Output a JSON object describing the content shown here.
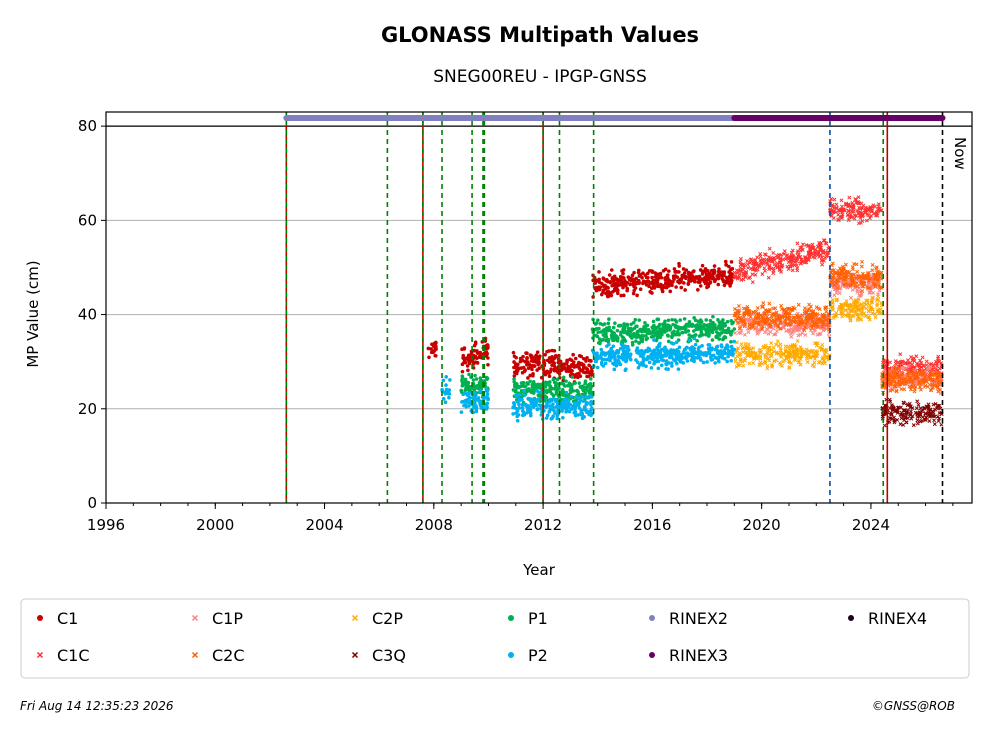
{
  "chart_data": {
    "type": "scatter",
    "title": "GLONASS Multipath Values",
    "subtitle": "SNEG00REU - IPGP-GNSS",
    "xlabel": "Year",
    "ylabel": "MP Value (cm)",
    "xlim": [
      1996,
      2027.7
    ],
    "ylim": [
      0,
      83
    ],
    "x_ticks": [
      "1996",
      "2000",
      "2004",
      "2008",
      "2012",
      "2016",
      "2020",
      "2024"
    ],
    "y_ticks": [
      "0",
      "20",
      "40",
      "60",
      "80"
    ],
    "grid": "horizontal",
    "legend_placement": "bottom",
    "now_label": "Now",
    "now_year": 2026.62,
    "reference_line_y": 80,
    "series": [
      {
        "name": "C1",
        "color": "#c80000",
        "marker": "circle",
        "segments": [
          [
            2007.8,
            2008.1,
            33
          ],
          [
            2009.0,
            2009.6,
            31
          ],
          [
            2009.6,
            2010.0,
            32
          ],
          [
            2010.9,
            2012.0,
            29.5
          ],
          [
            2012.0,
            2012.6,
            29.5
          ],
          [
            2012.6,
            2013.8,
            28.5
          ],
          [
            2013.8,
            2019.0,
            46,
            48.5
          ]
        ]
      },
      {
        "name": "C1C",
        "color": "#ff3030",
        "marker": "x",
        "segments": [
          [
            2019.0,
            2022.5,
            49,
            54
          ],
          [
            2022.5,
            2024.4,
            62
          ],
          [
            2024.4,
            2026.6,
            28.5
          ]
        ]
      },
      {
        "name": "C1P",
        "color": "#ff8080",
        "marker": "x",
        "segments": [
          [
            2019.0,
            2022.5,
            38
          ],
          [
            2022.5,
            2024.4,
            46.5
          ],
          [
            2024.4,
            2026.6,
            26.5
          ]
        ]
      },
      {
        "name": "C2C",
        "color": "#ff6000",
        "marker": "x",
        "segments": [
          [
            2019.0,
            2022.5,
            39.5
          ],
          [
            2022.5,
            2024.4,
            48
          ],
          [
            2024.4,
            2026.6,
            26
          ]
        ]
      },
      {
        "name": "C2P",
        "color": "#ffaa00",
        "marker": "x",
        "segments": [
          [
            2019.0,
            2022.5,
            31.5
          ],
          [
            2022.5,
            2024.4,
            41.5
          ]
        ]
      },
      {
        "name": "C3Q",
        "color": "#800000",
        "marker": "x",
        "segments": [
          [
            2024.4,
            2026.6,
            19
          ]
        ]
      },
      {
        "name": "P1",
        "color": "#00b050",
        "marker": "circle",
        "segments": [
          [
            2009.0,
            2010.0,
            25
          ],
          [
            2010.9,
            2013.8,
            24
          ],
          [
            2013.8,
            2019.0,
            36,
            37
          ]
        ]
      },
      {
        "name": "P2",
        "color": "#00b0f0",
        "marker": "circle",
        "segments": [
          [
            2008.3,
            2008.6,
            24
          ],
          [
            2009.0,
            2010.0,
            21.5
          ],
          [
            2010.9,
            2013.8,
            20.5
          ],
          [
            2013.8,
            2019.0,
            31,
            32
          ]
        ]
      },
      {
        "name": "RINEX2",
        "color": "#8080c0",
        "marker": "circle",
        "bar": [
          2002.6,
          2019.0
        ]
      },
      {
        "name": "RINEX3",
        "color": "#660066",
        "marker": "circle",
        "bar": [
          2019.0,
          2026.62
        ]
      },
      {
        "name": "RINEX4",
        "color": "#200020",
        "marker": "circle"
      }
    ],
    "event_lines": [
      {
        "x": 2002.6,
        "color": "#c00000"
      },
      {
        "x": 2002.6,
        "color": "#008000"
      },
      {
        "x": 2006.3,
        "color": "#008000"
      },
      {
        "x": 2007.6,
        "color": "#c00000"
      },
      {
        "x": 2007.6,
        "color": "#008000"
      },
      {
        "x": 2008.3,
        "color": "#008000"
      },
      {
        "x": 2009.4,
        "color": "#008000"
      },
      {
        "x": 2009.8,
        "color": "#008000"
      },
      {
        "x": 2009.85,
        "color": "#008000"
      },
      {
        "x": 2012.0,
        "color": "#c00000"
      },
      {
        "x": 2012.0,
        "color": "#008000"
      },
      {
        "x": 2012.6,
        "color": "#008000"
      },
      {
        "x": 2013.85,
        "color": "#008000"
      },
      {
        "x": 2022.5,
        "color": "#0050b0"
      },
      {
        "x": 2024.45,
        "color": "#008000"
      },
      {
        "x": 2024.6,
        "color": "#c00000"
      },
      {
        "x": 2026.62,
        "color": "#000000"
      }
    ]
  },
  "footer": {
    "timestamp": "Fri Aug 14 12:35:23 2026",
    "credit": "©GNSS@ROB"
  }
}
